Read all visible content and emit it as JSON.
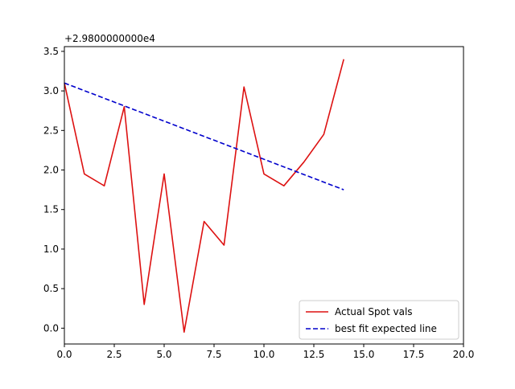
{
  "chart_data": {
    "type": "line",
    "title": "",
    "xlabel": "",
    "ylabel": "",
    "offset_label": "+2.9800000000e4",
    "xlim": [
      0,
      20
    ],
    "ylim": [
      -0.2,
      3.56
    ],
    "xticks": [
      0,
      2.5,
      5,
      7.5,
      10,
      12.5,
      15,
      17.5,
      20
    ],
    "xtick_labels": [
      "0.0",
      "2.5",
      "5.0",
      "7.5",
      "10.0",
      "12.5",
      "15.0",
      "17.5",
      "20.0"
    ],
    "yticks": [
      0,
      0.5,
      1,
      1.5,
      2,
      2.5,
      3,
      3.5
    ],
    "ytick_labels": [
      "0.0",
      "0.5",
      "1.0",
      "1.5",
      "2.0",
      "2.5",
      "3.0",
      "3.5"
    ],
    "grid": false,
    "legend": "lower-right",
    "series": [
      {
        "name": "Actual Spot vals",
        "style": "solid",
        "color": "#dd1111",
        "x": [
          0,
          1,
          2,
          3,
          4,
          5,
          6,
          7,
          8,
          9,
          10,
          11,
          12,
          13,
          14
        ],
        "y": [
          3.1,
          1.95,
          1.8,
          2.8,
          0.3,
          1.95,
          -0.05,
          1.35,
          1.05,
          3.05,
          1.95,
          1.8,
          2.1,
          2.45,
          3.4
        ]
      },
      {
        "name": "best fit expected line",
        "style": "dashed",
        "color": "#0000cc",
        "x": [
          0,
          14
        ],
        "y": [
          3.1,
          1.75
        ]
      }
    ]
  }
}
